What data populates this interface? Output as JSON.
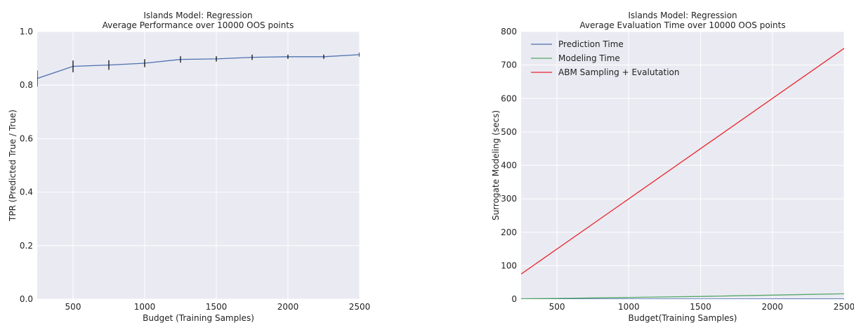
{
  "chart_data": [
    {
      "type": "line",
      "title": "Islands Model: Regression",
      "subtitle": "Average Performance over 10000 OOS points",
      "xlabel": "Budget (Training Samples)",
      "ylabel": "TPR (Predicted True / True)",
      "xlim": [
        250,
        2500
      ],
      "ylim": [
        0.0,
        1.0
      ],
      "xticks": [
        500,
        1000,
        1500,
        2000,
        2500
      ],
      "xtick_labels": [
        "500",
        "1000",
        "1500",
        "2000",
        "2500"
      ],
      "yticks": [
        0.0,
        0.2,
        0.4,
        0.6,
        0.8,
        1.0
      ],
      "ytick_labels": [
        "0.0",
        "0.2",
        "0.4",
        "0.6",
        "0.8",
        "1.0"
      ],
      "grid": true,
      "error_bars": true,
      "series": [
        {
          "color": "#4c72b0",
          "x": [
            250,
            500,
            750,
            1000,
            1250,
            1500,
            1750,
            2000,
            2250,
            2500
          ],
          "y": [
            0.825,
            0.87,
            0.875,
            0.882,
            0.896,
            0.898,
            0.904,
            0.906,
            0.906,
            0.914
          ],
          "err": [
            0.03,
            0.022,
            0.018,
            0.015,
            0.012,
            0.01,
            0.01,
            0.008,
            0.008,
            0.008
          ]
        }
      ]
    },
    {
      "type": "line",
      "title": "Islands Model: Regression",
      "subtitle": "Average Evaluation Time over 10000 OOS points",
      "xlabel": "Budget(Training Samples)",
      "ylabel": "Surrogate Modeling (secs)",
      "xlim": [
        250,
        2500
      ],
      "ylim": [
        0,
        800
      ],
      "xticks": [
        500,
        1000,
        1500,
        2000,
        2500
      ],
      "xtick_labels": [
        "500",
        "1000",
        "1500",
        "2000",
        "2500"
      ],
      "yticks": [
        0,
        100,
        200,
        300,
        400,
        500,
        600,
        700,
        800
      ],
      "ytick_labels": [
        "0",
        "100",
        "200",
        "300",
        "400",
        "500",
        "600",
        "700",
        "800"
      ],
      "grid": true,
      "legend_position": "top-left",
      "series": [
        {
          "name": "Prediction Time",
          "color": "#4c72b0",
          "x": [
            250,
            2500
          ],
          "y": [
            0.2,
            0.5
          ]
        },
        {
          "name": "Modeling Time",
          "color": "#55a868",
          "x": [
            250,
            500,
            750,
            1000,
            1250,
            1500,
            1750,
            2000,
            2250,
            2500
          ],
          "y": [
            1,
            2,
            3.5,
            5,
            6.5,
            8,
            10,
            12,
            14,
            16
          ]
        },
        {
          "name": "ABM Sampling + Evalutation",
          "color": "#e8262b",
          "x": [
            250,
            2500
          ],
          "y": [
            75,
            750
          ]
        }
      ]
    }
  ]
}
